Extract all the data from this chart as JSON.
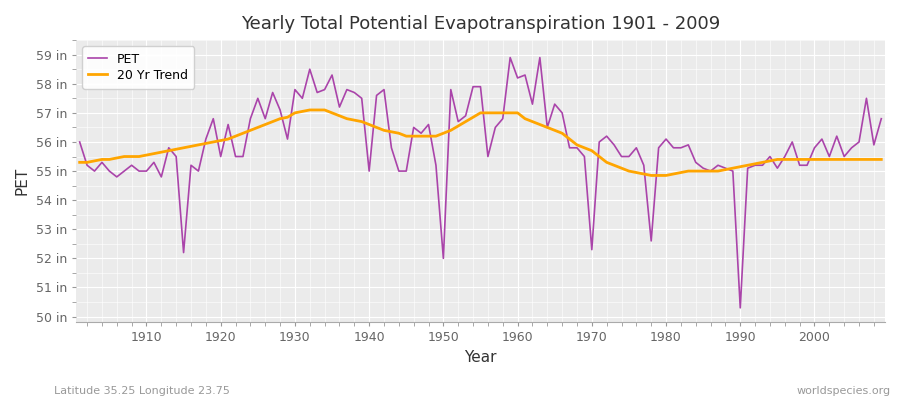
{
  "title": "Yearly Total Potential Evapotranspiration 1901 - 2009",
  "xlabel": "Year",
  "ylabel": "PET",
  "subtitle": "Latitude 35.25 Longitude 23.75",
  "watermark": "worldspecies.org",
  "pet_color": "#AA44AA",
  "trend_color": "#FFA500",
  "background_color": "#FFFFFF",
  "plot_bg_color": "#EBEBEB",
  "grid_color": "#FFFFFF",
  "ylim": [
    49.8,
    59.5
  ],
  "yticks": [
    50,
    51,
    52,
    53,
    54,
    55,
    56,
    57,
    58,
    59
  ],
  "ytick_labels": [
    "50 in",
    "51 in",
    "52 in",
    "53 in",
    "54 in",
    "55 in",
    "56 in",
    "57 in",
    "58 in",
    "59 in"
  ],
  "years": [
    1901,
    1902,
    1903,
    1904,
    1905,
    1906,
    1907,
    1908,
    1909,
    1910,
    1911,
    1912,
    1913,
    1914,
    1915,
    1916,
    1917,
    1918,
    1919,
    1920,
    1921,
    1922,
    1923,
    1924,
    1925,
    1926,
    1927,
    1928,
    1929,
    1930,
    1931,
    1932,
    1933,
    1934,
    1935,
    1936,
    1937,
    1938,
    1939,
    1940,
    1941,
    1942,
    1943,
    1944,
    1945,
    1946,
    1947,
    1948,
    1949,
    1950,
    1951,
    1952,
    1953,
    1954,
    1955,
    1956,
    1957,
    1958,
    1959,
    1960,
    1961,
    1962,
    1963,
    1964,
    1965,
    1966,
    1967,
    1968,
    1969,
    1970,
    1971,
    1972,
    1973,
    1974,
    1975,
    1976,
    1977,
    1978,
    1979,
    1980,
    1981,
    1982,
    1983,
    1984,
    1985,
    1986,
    1987,
    1988,
    1989,
    1990,
    1991,
    1992,
    1993,
    1994,
    1995,
    1996,
    1997,
    1998,
    1999,
    2000,
    2001,
    2002,
    2003,
    2004,
    2005,
    2006,
    2007,
    2008,
    2009
  ],
  "pet_values": [
    56.0,
    55.2,
    55.0,
    55.3,
    55.0,
    54.8,
    55.0,
    55.2,
    55.0,
    55.0,
    55.3,
    54.8,
    55.8,
    55.5,
    52.2,
    55.2,
    55.0,
    56.1,
    56.8,
    55.5,
    56.6,
    55.5,
    55.5,
    56.8,
    57.5,
    56.8,
    57.7,
    57.1,
    56.1,
    57.8,
    57.5,
    58.5,
    57.7,
    57.8,
    58.3,
    57.2,
    57.8,
    57.7,
    57.5,
    55.0,
    57.6,
    57.8,
    55.8,
    55.0,
    55.0,
    56.5,
    56.3,
    56.6,
    55.2,
    52.0,
    57.8,
    56.7,
    56.9,
    57.9,
    57.9,
    55.5,
    56.5,
    56.8,
    58.9,
    58.2,
    58.3,
    57.3,
    58.9,
    56.5,
    57.3,
    57.0,
    55.8,
    55.8,
    55.5,
    52.3,
    56.0,
    56.2,
    55.9,
    55.5,
    55.5,
    55.8,
    55.2,
    52.6,
    55.8,
    56.1,
    55.8,
    55.8,
    55.9,
    55.3,
    55.1,
    55.0,
    55.2,
    55.1,
    55.0,
    50.3,
    55.1,
    55.2,
    55.2,
    55.5,
    55.1,
    55.5,
    56.0,
    55.2,
    55.2,
    55.8,
    56.1,
    55.5,
    56.2,
    55.5,
    55.8,
    56.0,
    57.5,
    55.9,
    56.8
  ],
  "trend_values": [
    55.3,
    55.3,
    55.35,
    55.4,
    55.4,
    55.45,
    55.5,
    55.5,
    55.5,
    55.55,
    55.6,
    55.65,
    55.7,
    55.75,
    55.8,
    55.85,
    55.9,
    55.95,
    56.0,
    56.05,
    56.1,
    56.2,
    56.3,
    56.4,
    56.5,
    56.6,
    56.7,
    56.8,
    56.85,
    57.0,
    57.05,
    57.1,
    57.1,
    57.1,
    57.0,
    56.9,
    56.8,
    56.75,
    56.7,
    56.6,
    56.5,
    56.4,
    56.35,
    56.3,
    56.2,
    56.2,
    56.2,
    56.2,
    56.2,
    56.3,
    56.4,
    56.55,
    56.7,
    56.85,
    57.0,
    57.0,
    57.0,
    57.0,
    57.0,
    57.0,
    56.8,
    56.7,
    56.6,
    56.5,
    56.4,
    56.3,
    56.1,
    55.9,
    55.8,
    55.7,
    55.5,
    55.3,
    55.2,
    55.1,
    55.0,
    54.95,
    54.9,
    54.85,
    54.85,
    54.85,
    54.9,
    54.95,
    55.0,
    55.0,
    55.0,
    55.0,
    55.0,
    55.05,
    55.1,
    55.15,
    55.2,
    55.25,
    55.3,
    55.35,
    55.4,
    55.4,
    55.4,
    55.4,
    55.4,
    55.4,
    55.4,
    55.4,
    55.4,
    55.4,
    55.4,
    55.4,
    55.4,
    55.4,
    55.4
  ]
}
